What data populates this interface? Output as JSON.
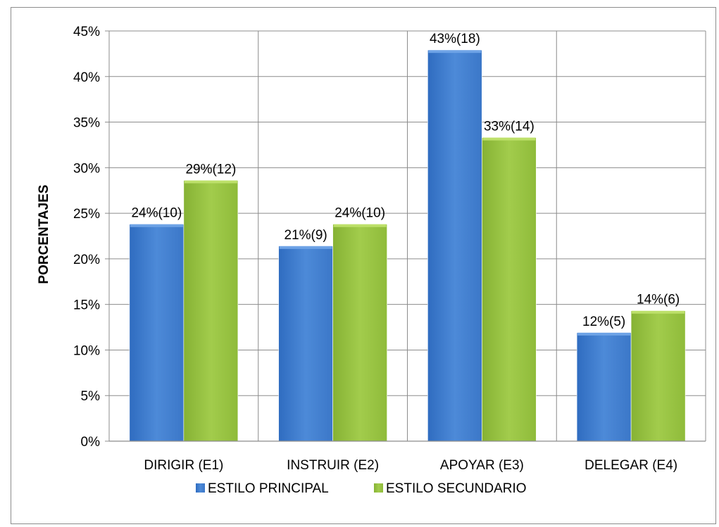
{
  "chart_data": {
    "type": "bar",
    "title": "",
    "xlabel": "",
    "ylabel": "PORCENTAJES",
    "ylim": [
      0,
      45
    ],
    "ytick_step": 5,
    "ytick_suffix": "%",
    "grid": true,
    "legend_position": "bottom",
    "categories": [
      "DIRIGIR (E1)",
      "INSTRUIR (E2)",
      "APOYAR (E3)",
      "DELEGAR (E4)"
    ],
    "series": [
      {
        "name": "ESTILO PRINCIPAL",
        "color": "#4a86d4",
        "values": [
          23.8,
          21.4,
          42.9,
          11.9
        ],
        "labels": [
          "24%(10)",
          "21%(9)",
          "43%(18)",
          "12%(5)"
        ]
      },
      {
        "name": "ESTILO SECUNDARIO",
        "color": "#9bc744",
        "values": [
          28.6,
          23.8,
          33.3,
          14.3
        ],
        "labels": [
          "29%(12)",
          "24%(10)",
          "33%(14)",
          "14%(6)"
        ]
      }
    ]
  }
}
